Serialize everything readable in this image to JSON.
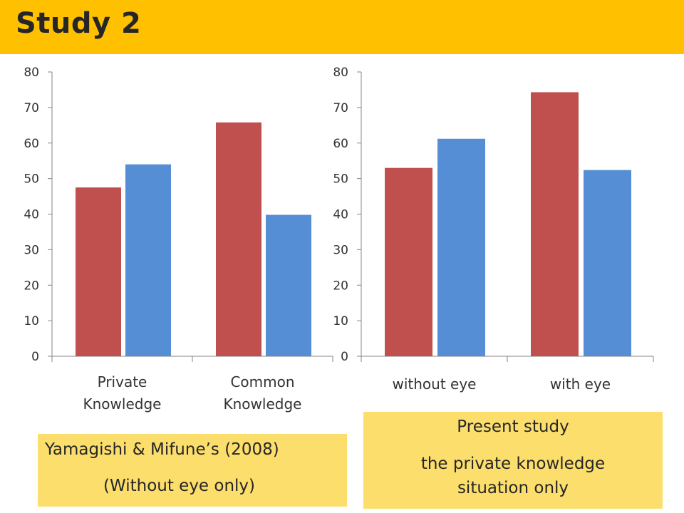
{
  "slide": {
    "title": "Study 2",
    "left_note": {
      "line1": "Yamagishi & Mifune’s (2008)",
      "line2": "(Without eye only)"
    },
    "right_note": {
      "line1": "Present study",
      "line2": "the private knowledge",
      "line3": "situation only"
    }
  },
  "colors": {
    "title_bar": "#FFC000",
    "note_box": "#FCDE6C",
    "series_red": "#C0504D",
    "series_blue": "#558ED5"
  },
  "chart_data": [
    {
      "type": "bar",
      "categories": [
        [
          "Private",
          "Knowledge"
        ],
        [
          "Common",
          "Knowledge"
        ]
      ],
      "series": [
        {
          "values": [
            47.5,
            65.8
          ],
          "color": "#C0504D"
        },
        {
          "values": [
            54.0,
            39.8
          ],
          "color": "#558ED5"
        }
      ],
      "ylim": [
        0,
        80
      ],
      "yticks": [
        0,
        10,
        20,
        30,
        40,
        50,
        60,
        70,
        80
      ],
      "grid": false,
      "legend": "none"
    },
    {
      "type": "bar",
      "categories": [
        [
          "without eye"
        ],
        [
          "with eye"
        ]
      ],
      "series": [
        {
          "values": [
            53.0,
            74.3
          ],
          "color": "#C0504D"
        },
        {
          "values": [
            61.2,
            52.4
          ],
          "color": "#558ED5"
        }
      ],
      "ylim": [
        0,
        80
      ],
      "yticks": [
        0,
        10,
        20,
        30,
        40,
        50,
        60,
        70,
        80
      ],
      "grid": false,
      "legend": "none"
    }
  ]
}
